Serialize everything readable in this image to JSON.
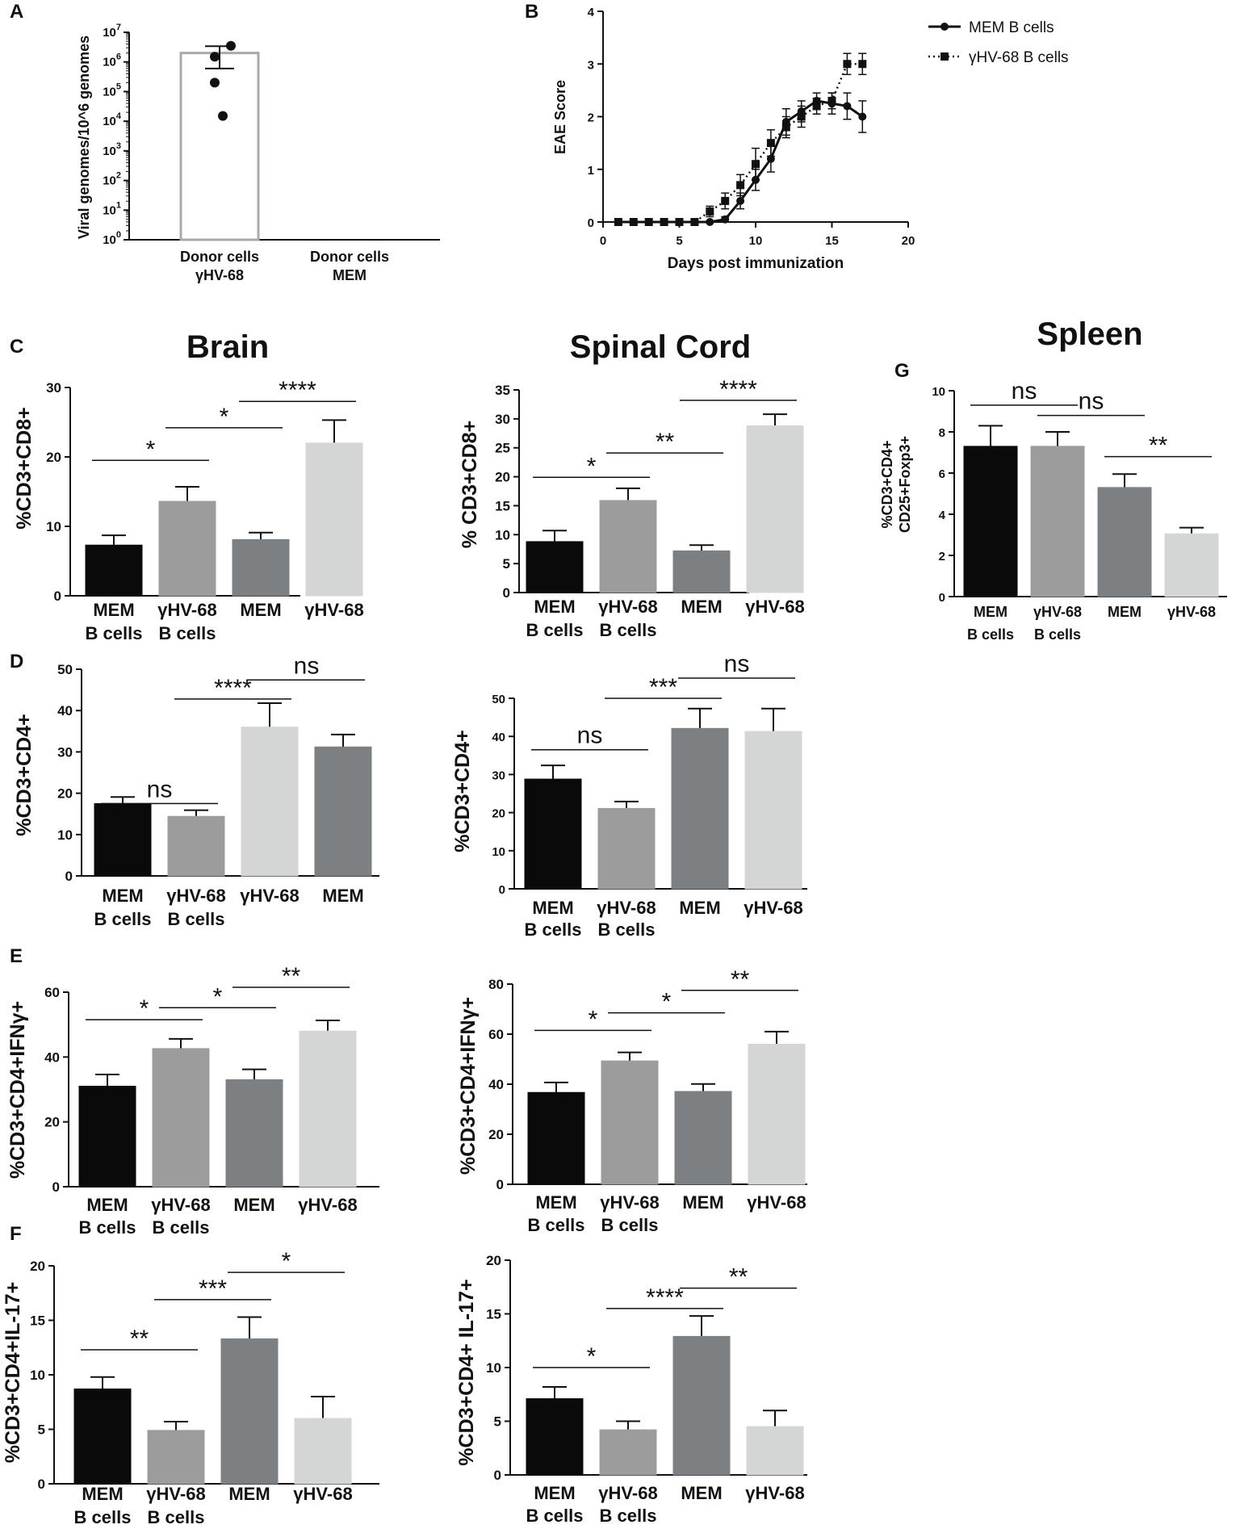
{
  "figure": {
    "sections": {
      "brain": "Brain",
      "spinal_cord": "Spinal Cord",
      "spleen": "Spleen"
    }
  },
  "chart_data": [
    {
      "id": "A",
      "panel_label": "A",
      "type": "bar",
      "yscale": "log",
      "ylabel": "Viral genomes/10^6 genomes",
      "ylim": [
        1,
        10000000
      ],
      "ytick_labels": [
        "10^0",
        "10^1",
        "10^2",
        "10^3",
        "10^4",
        "10^5",
        "10^6",
        "10^7"
      ],
      "categories": [
        [
          "Donor cells",
          "γHV-68"
        ],
        [
          "Donor cells",
          "MEM"
        ]
      ],
      "values": [
        2000000,
        null
      ],
      "error": [
        1400000,
        null
      ],
      "points": [
        3500000,
        1500000,
        200000,
        15000
      ],
      "bar_colors": [
        "#ffffff"
      ],
      "annotations": []
    },
    {
      "id": "B",
      "panel_label": "B",
      "type": "line",
      "xlabel": "Days post immunization",
      "ylabel": "EAE Score",
      "xlim": [
        0,
        20
      ],
      "ylim": [
        0,
        4
      ],
      "xticks": [
        0,
        5,
        10,
        15,
        20
      ],
      "yticks": [
        0,
        1,
        2,
        3,
        4
      ],
      "series": [
        {
          "name": "MEM B cells",
          "marker": "circle",
          "dash": "none",
          "x": [
            1,
            2,
            3,
            4,
            5,
            6,
            7,
            8,
            9,
            10,
            11,
            12,
            13,
            14,
            15,
            16,
            17
          ],
          "y": [
            0,
            0,
            0,
            0,
            0,
            0,
            0,
            0.05,
            0.4,
            0.8,
            1.2,
            1.9,
            2.1,
            2.3,
            2.25,
            2.2,
            2.0
          ],
          "err": [
            0,
            0,
            0,
            0,
            0,
            0,
            0,
            0.05,
            0.15,
            0.2,
            0.25,
            0.25,
            0.2,
            0.15,
            0.2,
            0.25,
            0.3
          ]
        },
        {
          "name": "γHV-68 B cells",
          "marker": "square",
          "dash": "2,4",
          "x": [
            1,
            2,
            3,
            4,
            5,
            6,
            7,
            8,
            9,
            10,
            11,
            12,
            13,
            14,
            15,
            16,
            17
          ],
          "y": [
            0,
            0,
            0,
            0,
            0,
            0,
            0.2,
            0.4,
            0.7,
            1.1,
            1.5,
            1.8,
            2.0,
            2.2,
            2.3,
            3.0,
            3.0
          ],
          "err": [
            0,
            0,
            0,
            0,
            0,
            0,
            0.1,
            0.15,
            0.2,
            0.3,
            0.25,
            0.2,
            0.2,
            0.15,
            0.15,
            0.2,
            0.2
          ]
        }
      ]
    },
    {
      "id": "C-brain",
      "panel_label": "C",
      "type": "bar",
      "ylabel": "%CD3+CD8+",
      "ylim": [
        0,
        30
      ],
      "yticks": [
        0,
        10,
        20,
        30
      ],
      "categories": [
        [
          "MEM",
          "B cells"
        ],
        [
          "γHV-68",
          "B cells"
        ],
        [
          "MEM"
        ],
        [
          "γHV-68"
        ]
      ],
      "values": [
        7.3,
        13.6,
        8.1,
        22.0
      ],
      "error": [
        1.4,
        2.1,
        1.0,
        3.3
      ],
      "bar_colors": [
        "#0a0a0a",
        "#9c9c9c",
        "#7d8082",
        "#d3d6d4"
      ],
      "annotations": [
        {
          "from": 0,
          "to": 1,
          "label": "*",
          "y": 19.5
        },
        {
          "from": 1,
          "to": 2,
          "label": "*",
          "y": 24.2
        },
        {
          "from": 2,
          "to": 3,
          "label": "****",
          "y": 28
        }
      ]
    },
    {
      "id": "C-spinal",
      "type": "bar",
      "ylabel": "% CD3+CD8+",
      "ylim": [
        0,
        35
      ],
      "yticks": [
        0,
        5,
        10,
        15,
        20,
        25,
        30,
        35
      ],
      "categories": [
        [
          "MEM",
          "B cells"
        ],
        [
          "γHV-68",
          "B cells"
        ],
        [
          "MEM"
        ],
        [
          "γHV-68"
        ]
      ],
      "values": [
        8.8,
        15.9,
        7.2,
        28.8
      ],
      "error": [
        1.9,
        2.1,
        1.0,
        2.0
      ],
      "bar_colors": [
        "#0a0a0a",
        "#9c9c9c",
        "#7d8082",
        "#d3d6d4"
      ],
      "annotations": [
        {
          "from": 0,
          "to": 1,
          "label": "*",
          "y": 19.9
        },
        {
          "from": 1,
          "to": 2,
          "label": "**",
          "y": 24.1
        },
        {
          "from": 2,
          "to": 3,
          "label": "****",
          "y": 33.2
        }
      ]
    },
    {
      "id": "G-spleen",
      "panel_label": "G",
      "type": "bar",
      "ylabel": [
        "%CD3+CD4+",
        "CD25+Foxp3+"
      ],
      "ylim": [
        0,
        10
      ],
      "yticks": [
        0,
        2,
        4,
        6,
        8,
        10
      ],
      "categories": [
        [
          "MEM",
          "B cells"
        ],
        [
          "γHV-68",
          "B cells"
        ],
        [
          "MEM"
        ],
        [
          "γHV-68"
        ]
      ],
      "values": [
        7.3,
        7.3,
        5.3,
        3.05
      ],
      "error": [
        1.0,
        0.7,
        0.65,
        0.3
      ],
      "bar_colors": [
        "#0a0a0a",
        "#9c9c9c",
        "#7d8082",
        "#d3d6d4"
      ],
      "annotations": [
        {
          "from": 0,
          "to": 1,
          "label": "ns",
          "y": 9.3
        },
        {
          "from": 1,
          "to": 2,
          "label": "ns",
          "y": 8.8
        },
        {
          "from": 2,
          "to": 3,
          "label": "**",
          "y": 6.8
        }
      ]
    },
    {
      "id": "D-brain",
      "panel_label": "D",
      "type": "bar",
      "ylabel": "%CD3+CD4+",
      "ylim": [
        0,
        50
      ],
      "yticks": [
        0,
        10,
        20,
        30,
        40,
        50
      ],
      "categories": [
        [
          "MEM",
          "B cells"
        ],
        [
          "γHV-68",
          "B cells"
        ],
        [
          "γHV-68"
        ],
        [
          "MEM"
        ]
      ],
      "values": [
        17.5,
        14.4,
        36.0,
        31.2
      ],
      "error": [
        1.6,
        1.5,
        5.8,
        3.0
      ],
      "bar_colors": [
        "#0a0a0a",
        "#9c9c9c",
        "#d3d6d4",
        "#7d8082"
      ],
      "annotations": [
        {
          "from": 0,
          "to": 1,
          "label": "ns",
          "y": 17.5
        },
        {
          "from": 1,
          "to": 2,
          "label": "****",
          "y": 42.8
        },
        {
          "from": 2,
          "to": 3,
          "label": "ns",
          "y": 47.4
        }
      ]
    },
    {
      "id": "D-spinal",
      "type": "bar",
      "ylabel": "%CD3+CD4+",
      "ylim": [
        0,
        50
      ],
      "yticks": [
        0,
        10,
        20,
        30,
        40,
        50
      ],
      "categories": [
        [
          "MEM",
          "B cells"
        ],
        [
          "γHV-68",
          "B cells"
        ],
        [
          "MEM"
        ],
        [
          "γHV-68"
        ]
      ],
      "values": [
        28.8,
        21.1,
        42.1,
        41.3
      ],
      "error": [
        3.6,
        1.8,
        5.2,
        6.0
      ],
      "bar_colors": [
        "#0a0a0a",
        "#9c9c9c",
        "#7d8082",
        "#d3d6d4"
      ],
      "annotations": [
        {
          "from": 0,
          "to": 1,
          "label": "ns",
          "y": 36.5
        },
        {
          "from": 1,
          "to": 2,
          "label": "***",
          "y": 50.0
        },
        {
          "from": 2,
          "to": 3,
          "label": "ns",
          "y": 55.3
        }
      ]
    },
    {
      "id": "E-brain",
      "panel_label": "E",
      "type": "bar",
      "ylabel": "%CD3+CD4+IFNγ+",
      "ylim": [
        0,
        60
      ],
      "yticks": [
        0,
        20,
        40,
        60
      ],
      "categories": [
        [
          "MEM",
          "B cells"
        ],
        [
          "γHV-68",
          "B cells"
        ],
        [
          "MEM"
        ],
        [
          "γHV-68"
        ]
      ],
      "values": [
        31.0,
        42.6,
        33.0,
        48.0
      ],
      "error": [
        3.6,
        3.0,
        3.2,
        3.3
      ],
      "bar_colors": [
        "#0a0a0a",
        "#9c9c9c",
        "#7d8082",
        "#d3d6d4"
      ],
      "annotations": [
        {
          "from": 0,
          "to": 1,
          "label": "*",
          "y": 51.5
        },
        {
          "from": 1,
          "to": 2,
          "label": "*",
          "y": 55.2
        },
        {
          "from": 2,
          "to": 3,
          "label": "**",
          "y": 61.5
        }
      ]
    },
    {
      "id": "E-spinal",
      "type": "bar",
      "ylabel": "%CD3+CD4+IFNγ+",
      "ylim": [
        0,
        80
      ],
      "yticks": [
        0,
        20,
        40,
        60,
        80
      ],
      "categories": [
        [
          "MEM",
          "B cells"
        ],
        [
          "γHV-68",
          "B cells"
        ],
        [
          "MEM"
        ],
        [
          "γHV-68"
        ]
      ],
      "values": [
        36.7,
        49.3,
        37.1,
        56.0
      ],
      "error": [
        4.0,
        3.4,
        3.0,
        5.0
      ],
      "bar_colors": [
        "#0a0a0a",
        "#9c9c9c",
        "#7d8082",
        "#d3d6d4"
      ],
      "annotations": [
        {
          "from": 0,
          "to": 1,
          "label": "*",
          "y": 61.5
        },
        {
          "from": 1,
          "to": 2,
          "label": "*",
          "y": 68.5
        },
        {
          "from": 2,
          "to": 3,
          "label": "**",
          "y": 77.5
        }
      ]
    },
    {
      "id": "F-brain",
      "panel_label": "F",
      "type": "bar",
      "ylabel": "%CD3+CD4+IL-17+",
      "ylim": [
        0,
        20
      ],
      "yticks": [
        0,
        5,
        10,
        15,
        20
      ],
      "categories": [
        [
          "MEM",
          "B cells"
        ],
        [
          "γHV-68",
          "B cells"
        ],
        [
          "MEM"
        ],
        [
          "γHV-68"
        ]
      ],
      "values": [
        8.7,
        4.9,
        13.3,
        6.0
      ],
      "error": [
        1.1,
        0.8,
        2.0,
        2.0
      ],
      "bar_colors": [
        "#0a0a0a",
        "#9c9c9c",
        "#7d8082",
        "#d3d6d4"
      ],
      "annotations": [
        {
          "from": 0,
          "to": 1,
          "label": "**",
          "y": 12.3
        },
        {
          "from": 1,
          "to": 2,
          "label": "***",
          "y": 16.9
        },
        {
          "from": 2,
          "to": 3,
          "label": "*",
          "y": 19.4
        }
      ]
    },
    {
      "id": "F-spinal",
      "type": "bar",
      "ylabel": "%CD3+CD4+ IL-17+",
      "ylim": [
        0,
        20
      ],
      "yticks": [
        0,
        5,
        10,
        15,
        20
      ],
      "categories": [
        [
          "MEM",
          "B cells"
        ],
        [
          "γHV-68",
          "B cells"
        ],
        [
          "MEM"
        ],
        [
          "γHV-68"
        ]
      ],
      "values": [
        7.1,
        4.2,
        12.9,
        4.5
      ],
      "error": [
        1.1,
        0.8,
        1.9,
        1.5
      ],
      "bar_colors": [
        "#0a0a0a",
        "#9c9c9c",
        "#7d8082",
        "#d3d6d4"
      ],
      "annotations": [
        {
          "from": 0,
          "to": 1,
          "label": "*",
          "y": 10.0
        },
        {
          "from": 1,
          "to": 2,
          "label": "****",
          "y": 15.5
        },
        {
          "from": 2,
          "to": 3,
          "label": "**",
          "y": 17.4
        }
      ]
    }
  ]
}
